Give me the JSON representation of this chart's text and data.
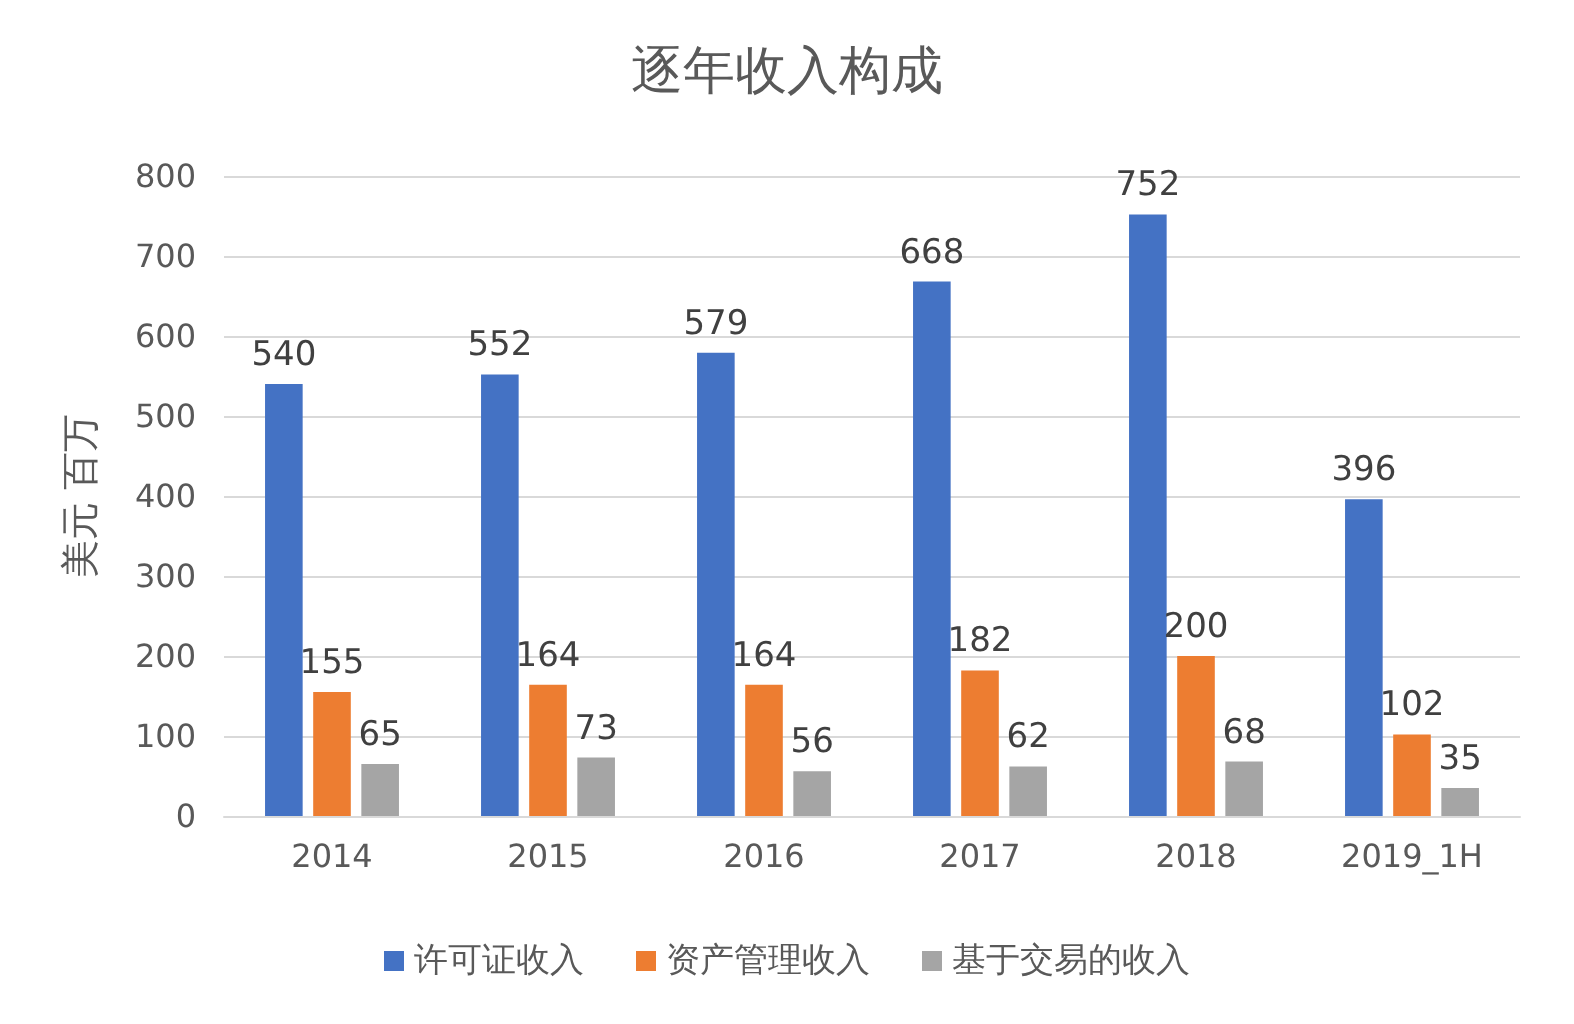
{
  "chart_data": {
    "type": "bar",
    "title": "逐年收入构成",
    "ylabel": "美元 百万",
    "categories": [
      "2014",
      "2015",
      "2016",
      "2017",
      "2018",
      "2019_1H"
    ],
    "series": [
      {
        "name": "许可证收入",
        "color": "#4472c4",
        "values": [
          540,
          552,
          579,
          668,
          752,
          396
        ]
      },
      {
        "name": "资产管理收入",
        "color": "#ed7d31",
        "values": [
          155,
          164,
          164,
          182,
          200,
          102
        ]
      },
      {
        "name": "基于交易的收入",
        "color": "#a5a5a5",
        "values": [
          65,
          73,
          56,
          62,
          68,
          35
        ]
      }
    ],
    "ylim": [
      0,
      800
    ],
    "yticks": [
      0,
      100,
      200,
      300,
      400,
      500,
      600,
      700,
      800
    ],
    "grid": "y",
    "legend": "bottom",
    "data_labels": true
  }
}
